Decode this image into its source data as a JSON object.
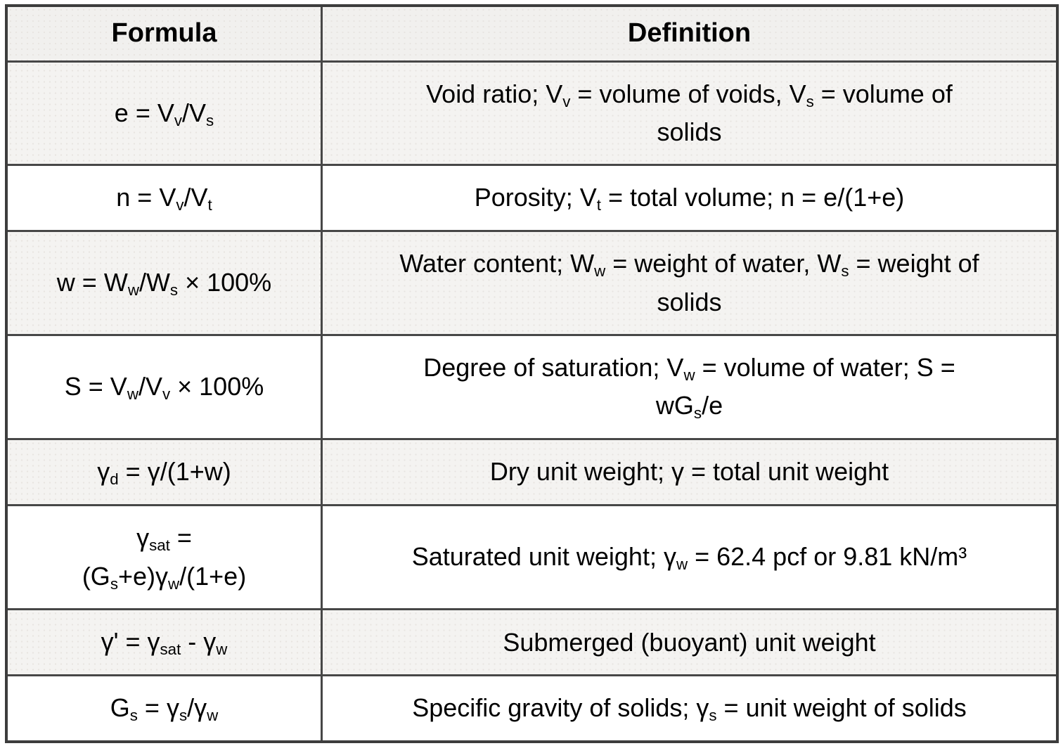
{
  "colors": {
    "border_outer": "#3d3d3d",
    "border_inner": "#474747",
    "header_bg": "#f1f0ee",
    "shaded_row_bg": "#f4f3f1",
    "plain_row_bg": "#ffffff",
    "text": "#000000"
  },
  "table": {
    "columns": [
      {
        "label": "Formula"
      },
      {
        "label": "Definition"
      }
    ],
    "rows": [
      {
        "shaded": true,
        "formula": [
          {
            "t": "e = V"
          },
          {
            "t": "v",
            "sub": true
          },
          {
            "t": "/V"
          },
          {
            "t": "s",
            "sub": true
          }
        ],
        "definition": [
          {
            "t": "Void ratio; V"
          },
          {
            "t": "v",
            "sub": true
          },
          {
            "t": " = volume of voids, V"
          },
          {
            "t": "s",
            "sub": true
          },
          {
            "t": " = volume of"
          },
          {
            "br": true
          },
          {
            "t": "solids"
          }
        ]
      },
      {
        "shaded": false,
        "formula": [
          {
            "t": "n = V"
          },
          {
            "t": "v",
            "sub": true
          },
          {
            "t": "/V"
          },
          {
            "t": "t",
            "sub": true
          }
        ],
        "definition": [
          {
            "t": "Porosity; V"
          },
          {
            "t": "t",
            "sub": true
          },
          {
            "t": " = total volume; n = e/(1+e)"
          }
        ]
      },
      {
        "shaded": true,
        "formula": [
          {
            "t": "w = W"
          },
          {
            "t": "w",
            "sub": true
          },
          {
            "t": "/W"
          },
          {
            "t": "s",
            "sub": true
          },
          {
            "t": " × 100%"
          }
        ],
        "definition": [
          {
            "t": "Water content; W"
          },
          {
            "t": "w",
            "sub": true
          },
          {
            "t": " = weight of water, W"
          },
          {
            "t": "s",
            "sub": true
          },
          {
            "t": " = weight of"
          },
          {
            "br": true
          },
          {
            "t": "solids"
          }
        ]
      },
      {
        "shaded": false,
        "formula": [
          {
            "t": "S = V"
          },
          {
            "t": "w",
            "sub": true
          },
          {
            "t": "/V"
          },
          {
            "t": "v",
            "sub": true
          },
          {
            "t": " × 100%"
          }
        ],
        "definition": [
          {
            "t": "Degree of saturation; V"
          },
          {
            "t": "w",
            "sub": true
          },
          {
            "t": " = volume of water; S ="
          },
          {
            "br": true
          },
          {
            "t": "wG"
          },
          {
            "t": "s",
            "sub": true
          },
          {
            "t": "/e"
          }
        ]
      },
      {
        "shaded": true,
        "formula": [
          {
            "t": "γ"
          },
          {
            "t": "d",
            "sub": true
          },
          {
            "t": " = γ/(1+w)"
          }
        ],
        "definition": [
          {
            "t": "Dry unit weight; γ = total unit weight"
          }
        ]
      },
      {
        "shaded": false,
        "formula": [
          {
            "t": "γ"
          },
          {
            "t": "sat",
            "sub": true
          },
          {
            "t": " ="
          },
          {
            "br": true
          },
          {
            "t": "(G"
          },
          {
            "t": "s",
            "sub": true
          },
          {
            "t": "+e)γ"
          },
          {
            "t": "w",
            "sub": true
          },
          {
            "t": "/(1+e)"
          }
        ],
        "definition": [
          {
            "t": "Saturated unit weight; γ"
          },
          {
            "t": "w",
            "sub": true
          },
          {
            "t": " = 62.4 pcf or 9.81 kN/m³"
          }
        ]
      },
      {
        "shaded": true,
        "formula": [
          {
            "t": "γ' = γ"
          },
          {
            "t": "sat",
            "sub": true
          },
          {
            "t": " - γ"
          },
          {
            "t": "w",
            "sub": true
          }
        ],
        "definition": [
          {
            "t": "Submerged (buoyant) unit weight"
          }
        ]
      },
      {
        "shaded": false,
        "formula": [
          {
            "t": "G"
          },
          {
            "t": "s",
            "sub": true
          },
          {
            "t": " = γ"
          },
          {
            "t": "s",
            "sub": true
          },
          {
            "t": "/γ"
          },
          {
            "t": "w",
            "sub": true
          }
        ],
        "definition": [
          {
            "t": "Specific gravity of solids; γ"
          },
          {
            "t": "s",
            "sub": true
          },
          {
            "t": " = unit weight of solids"
          }
        ]
      }
    ]
  }
}
